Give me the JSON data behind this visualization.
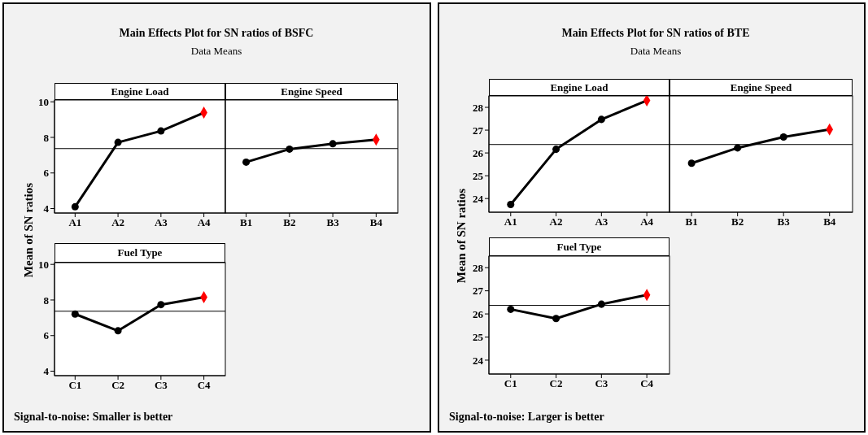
{
  "chart_data": [
    {
      "type": "line",
      "title": "Engine Load",
      "ylabel": "Mean of SN ratios",
      "annotations": [
        "Main Effects Plot for SN ratios of BSFC",
        "Data Means"
      ],
      "categories": [
        "A1",
        "A2",
        "A3",
        "A4"
      ],
      "ylim": [
        3.75,
        10.1
      ],
      "yticks": [
        4,
        6,
        8,
        10
      ],
      "grid": false,
      "ref_lines": [
        {
          "axis": "y",
          "value": 7.37,
          "color": "#000000"
        }
      ],
      "series": [
        {
          "type": "line",
          "marker": "none",
          "color": "#000000",
          "values": [
            4.1,
            7.72,
            8.36,
            9.39
          ]
        },
        {
          "type": "scatter",
          "marker": "circle",
          "color": "#000000",
          "values": [
            4.1,
            7.72,
            8.36,
            null
          ]
        },
        {
          "type": "scatter",
          "marker": "diamond",
          "color": "#ff0000",
          "values": [
            null,
            null,
            null,
            9.39
          ]
        }
      ]
    },
    {
      "type": "line",
      "title": "Engine Speed",
      "categories": [
        "B1",
        "B2",
        "B3",
        "B4"
      ],
      "ylim": [
        3.75,
        10.1
      ],
      "yticks": [
        4,
        6,
        8,
        10
      ],
      "tick_labels": "x",
      "grid": false,
      "ref_lines": [
        {
          "axis": "y",
          "value": 7.37,
          "color": "#000000"
        }
      ],
      "series": [
        {
          "type": "line",
          "marker": "none",
          "color": "#000000",
          "values": [
            6.61,
            7.34,
            7.64,
            7.87
          ]
        },
        {
          "type": "scatter",
          "marker": "circle",
          "color": "#000000",
          "values": [
            6.61,
            7.34,
            7.64,
            null
          ]
        },
        {
          "type": "scatter",
          "marker": "diamond",
          "color": "#ff0000",
          "values": [
            null,
            null,
            null,
            7.87
          ]
        }
      ]
    },
    {
      "type": "line",
      "title": "Fuel Type",
      "annotations": [
        "Signal-to-noise: Smaller is better"
      ],
      "categories": [
        "C1",
        "C2",
        "C3",
        "C4"
      ],
      "ylim": [
        3.75,
        10.1
      ],
      "yticks": [
        4,
        6,
        8,
        10
      ],
      "grid": false,
      "ref_lines": [
        {
          "axis": "y",
          "value": 7.37,
          "color": "#000000"
        }
      ],
      "series": [
        {
          "type": "line",
          "marker": "none",
          "color": "#000000",
          "values": [
            7.21,
            6.27,
            7.74,
            8.16
          ]
        },
        {
          "type": "scatter",
          "marker": "circle",
          "color": "#000000",
          "values": [
            7.21,
            6.27,
            7.74,
            null
          ]
        },
        {
          "type": "scatter",
          "marker": "diamond",
          "color": "#ff0000",
          "values": [
            null,
            null,
            null,
            8.16
          ]
        }
      ]
    },
    {
      "type": "line",
      "title": "Engine Load",
      "ylabel": "Mean of SN ratios",
      "annotations": [
        "Main Effects Plot for SN ratios of BTE",
        "Data Means"
      ],
      "categories": [
        "A1",
        "A2",
        "A3",
        "A4"
      ],
      "ylim": [
        23.4,
        28.5
      ],
      "yticks": [
        24,
        25,
        26,
        27,
        28
      ],
      "grid": false,
      "ref_lines": [
        {
          "axis": "y",
          "value": 26.37,
          "color": "#000000"
        }
      ],
      "series": [
        {
          "type": "line",
          "marker": "none",
          "color": "#000000",
          "values": [
            23.74,
            26.16,
            27.47,
            28.3
          ]
        },
        {
          "type": "scatter",
          "marker": "circle",
          "color": "#000000",
          "values": [
            23.74,
            26.16,
            27.47,
            null
          ]
        },
        {
          "type": "scatter",
          "marker": "diamond",
          "color": "#ff0000",
          "values": [
            null,
            null,
            null,
            28.3
          ]
        }
      ]
    },
    {
      "type": "line",
      "title": "Engine Speed",
      "categories": [
        "B1",
        "B2",
        "B3",
        "B4"
      ],
      "ylim": [
        23.4,
        28.5
      ],
      "yticks": [
        24,
        25,
        26,
        27,
        28
      ],
      "tick_labels": "x",
      "grid": false,
      "ref_lines": [
        {
          "axis": "y",
          "value": 26.37,
          "color": "#000000"
        }
      ],
      "series": [
        {
          "type": "line",
          "marker": "none",
          "color": "#000000",
          "values": [
            25.55,
            26.22,
            26.7,
            27.03
          ]
        },
        {
          "type": "scatter",
          "marker": "circle",
          "color": "#000000",
          "values": [
            25.55,
            26.22,
            26.7,
            null
          ]
        },
        {
          "type": "scatter",
          "marker": "diamond",
          "color": "#ff0000",
          "values": [
            null,
            null,
            null,
            27.03
          ]
        }
      ]
    },
    {
      "type": "line",
      "title": "Fuel Type",
      "annotations": [
        "Signal-to-noise: Larger is better"
      ],
      "categories": [
        "C1",
        "C2",
        "C3",
        "C4"
      ],
      "ylim": [
        23.4,
        28.5
      ],
      "yticks": [
        24,
        25,
        26,
        27,
        28
      ],
      "grid": false,
      "ref_lines": [
        {
          "axis": "y",
          "value": 26.37,
          "color": "#000000"
        }
      ],
      "series": [
        {
          "type": "line",
          "marker": "none",
          "color": "#000000",
          "values": [
            26.2,
            25.8,
            26.42,
            26.82
          ]
        },
        {
          "type": "scatter",
          "marker": "circle",
          "color": "#000000",
          "values": [
            26.2,
            25.8,
            26.42,
            null
          ]
        },
        {
          "type": "scatter",
          "marker": "diamond",
          "color": "#ff0000",
          "values": [
            null,
            null,
            null,
            26.82
          ]
        }
      ]
    }
  ]
}
